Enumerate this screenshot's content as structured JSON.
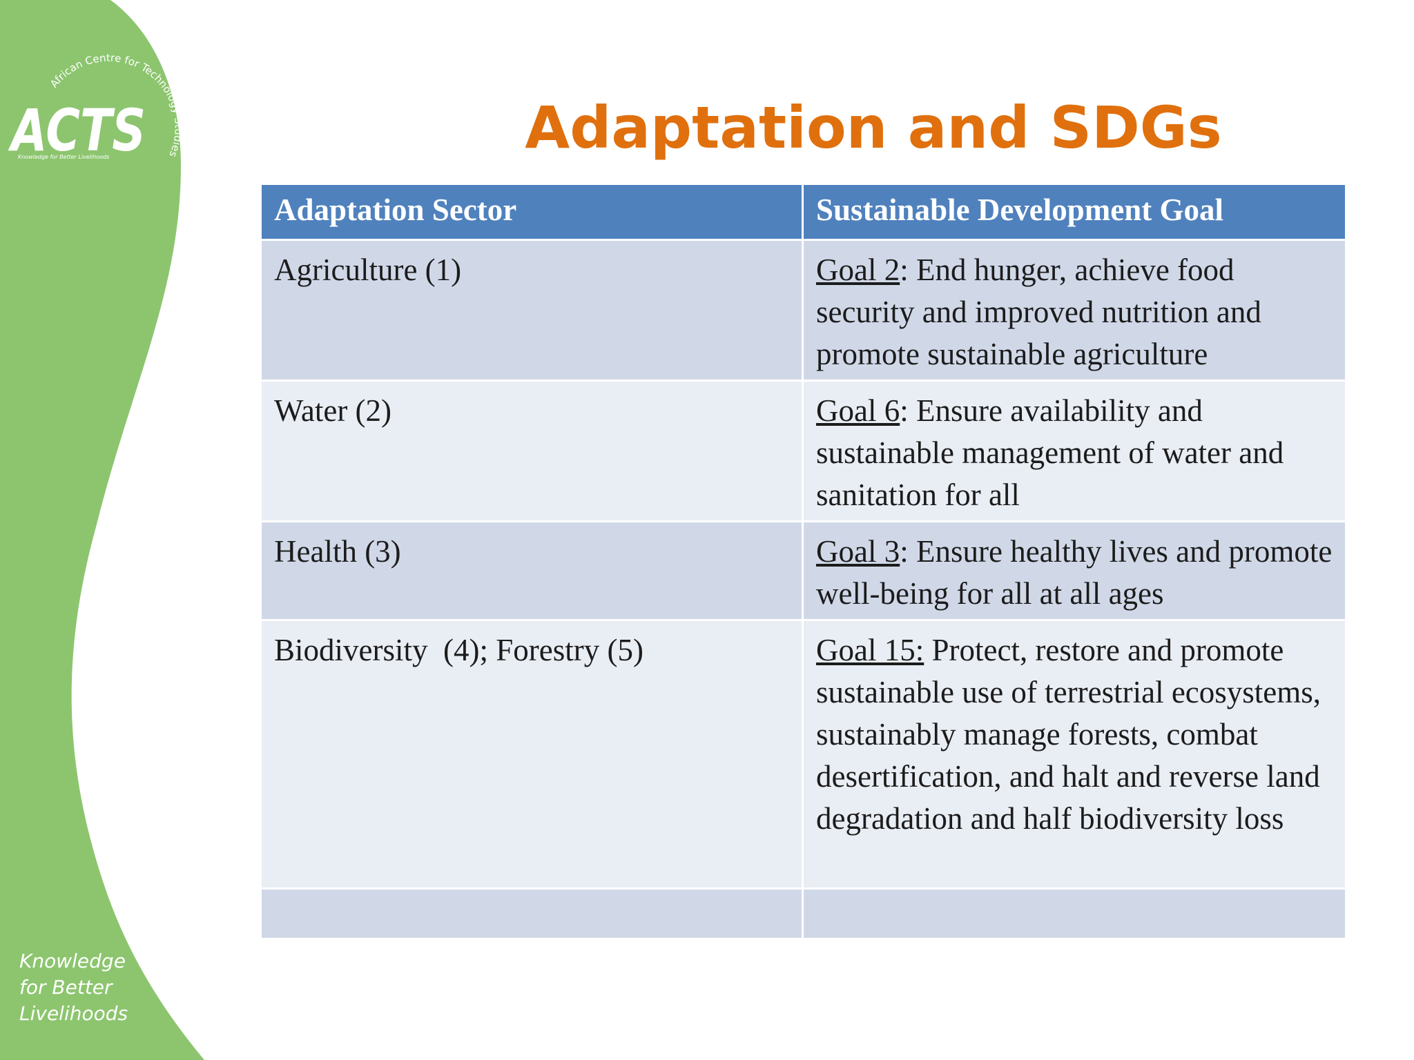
{
  "colors": {
    "side_band": "#8cc56e",
    "title": "#e0700d",
    "table_header": "#4f81bd",
    "row_band_dark": "#d0d8e8",
    "row_band_light": "#e9edf4"
  },
  "logo": {
    "arc_text": "African Centre for Technology Studies",
    "wordmark": "ACTS",
    "tagline": "Knowledge for Better Livelihoods"
  },
  "side_tagline": [
    "Knowledge",
    "for Better",
    "Livelihoods"
  ],
  "title": "Adaptation and SDGs",
  "table": {
    "headers": [
      "Adaptation Sector",
      "Sustainable Development Goal"
    ],
    "rows": [
      {
        "sector": "Agriculture (1)",
        "goal_ref": "Goal 2",
        "goal_sep": ": ",
        "goal_text": "End hunger, achieve food security and improved nutrition and promote sustainable agriculture"
      },
      {
        "sector": "Water (2)",
        "goal_ref": "Goal 6",
        "goal_sep": ": ",
        "goal_text": "Ensure availability and sustainable management of  water and sanitation for all"
      },
      {
        "sector": "Health (3)",
        "goal_ref": "Goal 3",
        "goal_sep": ": ",
        "goal_text": "Ensure healthy lives and promote well-being for all at all ages"
      },
      {
        "sector": "Biodiversity  (4); Forestry (5)",
        "goal_ref": "Goal 15:",
        "goal_sep": " ",
        "goal_text": "Protect, restore and promote sustainable use of  terrestrial ecosystems, sustainably manage forests, combat desertification, and halt and reverse land degradation and half  biodiversity loss"
      },
      {
        "sector": "",
        "goal_ref": "",
        "goal_sep": "",
        "goal_text": ""
      }
    ]
  }
}
